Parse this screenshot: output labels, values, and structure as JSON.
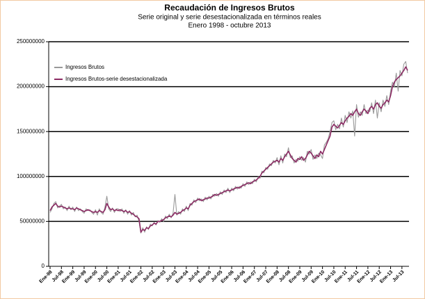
{
  "chart_data": {
    "type": "line",
    "title": "Recaudación de Ingresos Brutos",
    "subtitle": [
      "Serie original y serie desestacionalizada en términos reales",
      "Enero 1998 - octubre 2013"
    ],
    "categories": [
      "Ene-98",
      null,
      null,
      null,
      null,
      null,
      "Jul-98",
      null,
      null,
      null,
      null,
      null,
      "Ene-99",
      null,
      null,
      null,
      null,
      null,
      "Jul-99",
      null,
      null,
      null,
      null,
      null,
      "Ene-00",
      null,
      null,
      null,
      null,
      null,
      "Jul-00",
      null,
      null,
      null,
      null,
      null,
      "Ene-01",
      null,
      null,
      null,
      null,
      null,
      "Jul-01",
      null,
      null,
      null,
      null,
      null,
      "Ene-02",
      null,
      null,
      null,
      null,
      null,
      "Jul-02",
      null,
      null,
      null,
      null,
      null,
      "Ene-03",
      null,
      null,
      null,
      null,
      null,
      "Jul-03",
      null,
      null,
      null,
      null,
      null,
      "Ene-04",
      null,
      null,
      null,
      null,
      null,
      "Jul-04",
      null,
      null,
      null,
      null,
      null,
      "Ene-05",
      null,
      null,
      null,
      null,
      null,
      "Jul-05",
      null,
      null,
      null,
      null,
      null,
      "Ene-06",
      null,
      null,
      null,
      null,
      null,
      "Jul-06",
      null,
      null,
      null,
      null,
      null,
      "Ene-07",
      null,
      null,
      null,
      null,
      null,
      "Jul-07",
      null,
      null,
      null,
      null,
      null,
      "Ene-08",
      null,
      null,
      null,
      null,
      null,
      "Jul-08",
      null,
      null,
      null,
      null,
      null,
      "Ene-09",
      null,
      null,
      null,
      null,
      null,
      "Jul-09",
      null,
      null,
      null,
      null,
      null,
      "Ene-10",
      null,
      null,
      null,
      null,
      null,
      "Jul-10",
      null,
      null,
      null,
      null,
      null,
      "Ene-11",
      null,
      null,
      null,
      null,
      null,
      "Jul-11",
      null,
      null,
      null,
      null,
      null,
      "Ene-12",
      null,
      null,
      null,
      null,
      null,
      "Jul-12",
      null,
      null,
      null,
      null,
      null,
      "Ene-13",
      null,
      null,
      null,
      null,
      null,
      "Jul-13",
      null,
      null,
      null
    ],
    "series": [
      {
        "name": "Ingresos Brutos",
        "color": "#999999",
        "values": [
          60000000.0,
          64000000.0,
          70000000.0,
          72000000.0,
          65000000.0,
          67000000.0,
          69000000.0,
          64000000.0,
          66000000.0,
          62000000.0,
          67000000.0,
          63000000.0,
          66000000.0,
          61000000.0,
          66000000.0,
          62000000.0,
          64000000.0,
          61000000.0,
          59000000.0,
          64000000.0,
          62000000.0,
          63000000.0,
          60000000.0,
          58000000.0,
          63000000.0,
          57000000.0,
          64000000.0,
          60000000.0,
          58000000.0,
          66000000.0,
          78000000.0,
          64000000.0,
          61000000.0,
          65000000.0,
          60000000.0,
          64000000.0,
          64000000.0,
          61000000.0,
          64000000.0,
          59000000.0,
          63000000.0,
          58000000.0,
          62000000.0,
          57000000.0,
          60000000.0,
          55000000.0,
          57000000.0,
          50000000.0,
          37000000.0,
          43000000.0,
          38000000.0,
          44000000.0,
          41000000.0,
          47000000.0,
          45000000.0,
          49000000.0,
          46000000.0,
          51000000.0,
          49000000.0,
          53000000.0,
          50000000.0,
          56000000.0,
          53000000.0,
          58000000.0,
          54000000.0,
          59000000.0,
          80000000.0,
          57000000.0,
          61000000.0,
          58000000.0,
          64000000.0,
          61000000.0,
          67000000.0,
          62000000.0,
          70000000.0,
          68000000.0,
          74000000.0,
          71000000.0,
          76000000.0,
          73000000.0,
          75000000.0,
          72000000.0,
          77000000.0,
          74000000.0,
          78000000.0,
          75000000.0,
          80000000.0,
          78000000.0,
          81000000.0,
          78000000.0,
          83000000.0,
          80000000.0,
          85000000.0,
          82000000.0,
          87000000.0,
          82000000.0,
          87000000.0,
          84000000.0,
          89000000.0,
          86000000.0,
          89000000.0,
          87000000.0,
          92000000.0,
          89000000.0,
          94000000.0,
          91000000.0,
          94000000.0,
          92000000.0,
          97000000.0,
          94000000.0,
          100000000.0,
          98000000.0,
          106000000.0,
          104000000.0,
          110000000.0,
          108000000.0,
          114000000.0,
          112000000.0,
          118000000.0,
          115000000.0,
          121000000.0,
          113000000.0,
          123000000.0,
          115000000.0,
          125000000.0,
          122000000.0,
          132000000.0,
          121000000.0,
          123000000.0,
          115000000.0,
          119000000.0,
          117000000.0,
          122000000.0,
          118000000.0,
          121000000.0,
          116000000.0,
          128000000.0,
          125000000.0,
          130000000.0,
          119000000.0,
          124000000.0,
          120000000.0,
          126000000.0,
          124000000.0,
          120000000.0,
          135000000.0,
          138000000.0,
          142000000.0,
          150000000.0,
          160000000.0,
          162000000.0,
          152000000.0,
          158000000.0,
          153000000.0,
          165000000.0,
          155000000.0,
          168000000.0,
          160000000.0,
          172000000.0,
          165000000.0,
          173000000.0,
          145000000.0,
          180000000.0,
          166000000.0,
          172000000.0,
          168000000.0,
          180000000.0,
          170000000.0,
          174000000.0,
          172000000.0,
          182000000.0,
          170000000.0,
          185000000.0,
          165000000.0,
          182000000.0,
          172000000.0,
          185000000.0,
          178000000.0,
          190000000.0,
          180000000.0,
          195000000.0,
          205000000.0,
          200000000.0,
          215000000.0,
          195000000.0,
          218000000.0,
          212000000.0,
          225000000.0,
          228000000.0,
          215000000.0
        ]
      },
      {
        "name": "Ingresos Brutos-serie desestacionalizada",
        "color": "#8b2a63",
        "values": [
          62000000.0,
          66000000.0,
          68000000.0,
          70000000.0,
          67000000.0,
          66000000.0,
          67000000.0,
          66000000.0,
          65000000.0,
          64000000.0,
          65000000.0,
          64000000.0,
          64000000.0,
          63000000.0,
          65000000.0,
          64000000.0,
          63000000.0,
          62000000.0,
          61000000.0,
          62000000.0,
          63000000.0,
          62000000.0,
          61000000.0,
          60000000.0,
          61000000.0,
          60000000.0,
          62000000.0,
          61000000.0,
          60000000.0,
          63000000.0,
          70000000.0,
          66000000.0,
          63000000.0,
          64000000.0,
          62000000.0,
          63000000.0,
          62000000.0,
          63000000.0,
          62000000.0,
          61000000.0,
          62000000.0,
          60000000.0,
          61000000.0,
          59000000.0,
          58000000.0,
          56000000.0,
          55000000.0,
          53000000.0,
          38000000.0,
          41000000.0,
          40000000.0,
          43000000.0,
          42000000.0,
          45000000.0,
          46000000.0,
          48000000.0,
          47000000.0,
          50000000.0,
          50000000.0,
          51000000.0,
          52000000.0,
          54000000.0,
          55000000.0,
          56000000.0,
          55000000.0,
          57000000.0,
          60000000.0,
          58000000.0,
          59000000.0,
          60000000.0,
          62000000.0,
          63000000.0,
          65000000.0,
          64000000.0,
          68000000.0,
          70000000.0,
          72000000.0,
          73000000.0,
          74000000.0,
          75000000.0,
          73000000.0,
          74000000.0,
          75000000.0,
          76000000.0,
          76000000.0,
          77000000.0,
          78000000.0,
          80000000.0,
          79000000.0,
          80000000.0,
          81000000.0,
          82000000.0,
          83000000.0,
          84000000.0,
          85000000.0,
          84000000.0,
          85000000.0,
          86000000.0,
          87000000.0,
          88000000.0,
          87000000.0,
          89000000.0,
          90000000.0,
          91000000.0,
          92000000.0,
          93000000.0,
          92000000.0,
          94000000.0,
          95000000.0,
          96000000.0,
          98000000.0,
          100000000.0,
          104000000.0,
          106000000.0,
          108000000.0,
          110000000.0,
          112000000.0,
          114000000.0,
          116000000.0,
          117000000.0,
          118000000.0,
          116000000.0,
          120000000.0,
          118000000.0,
          122000000.0,
          125000000.0,
          128000000.0,
          124000000.0,
          120000000.0,
          118000000.0,
          116000000.0,
          120000000.0,
          119000000.0,
          122000000.0,
          118000000.0,
          120000000.0,
          124000000.0,
          128000000.0,
          126000000.0,
          123000000.0,
          120000000.0,
          124000000.0,
          122000000.0,
          128000000.0,
          125000000.0,
          130000000.0,
          135000000.0,
          140000000.0,
          145000000.0,
          155000000.0,
          158000000.0,
          156000000.0,
          154000000.0,
          157000000.0,
          160000000.0,
          158000000.0,
          162000000.0,
          165000000.0,
          167000000.0,
          170000000.0,
          168000000.0,
          172000000.0,
          175000000.0,
          170000000.0,
          168000000.0,
          172000000.0,
          175000000.0,
          173000000.0,
          170000000.0,
          176000000.0,
          178000000.0,
          175000000.0,
          180000000.0,
          182000000.0,
          178000000.0,
          176000000.0,
          180000000.0,
          182000000.0,
          185000000.0,
          183000000.0,
          190000000.0,
          200000000.0,
          205000000.0,
          208000000.0,
          210000000.0,
          212000000.0,
          215000000.0,
          218000000.0,
          222000000.0,
          218000000.0
        ]
      }
    ],
    "ylim": [
      0,
      250000000
    ],
    "yticks": [
      0,
      50000000,
      100000000,
      150000000,
      200000000,
      250000000
    ],
    "grid": true,
    "legend": "upper-left"
  }
}
